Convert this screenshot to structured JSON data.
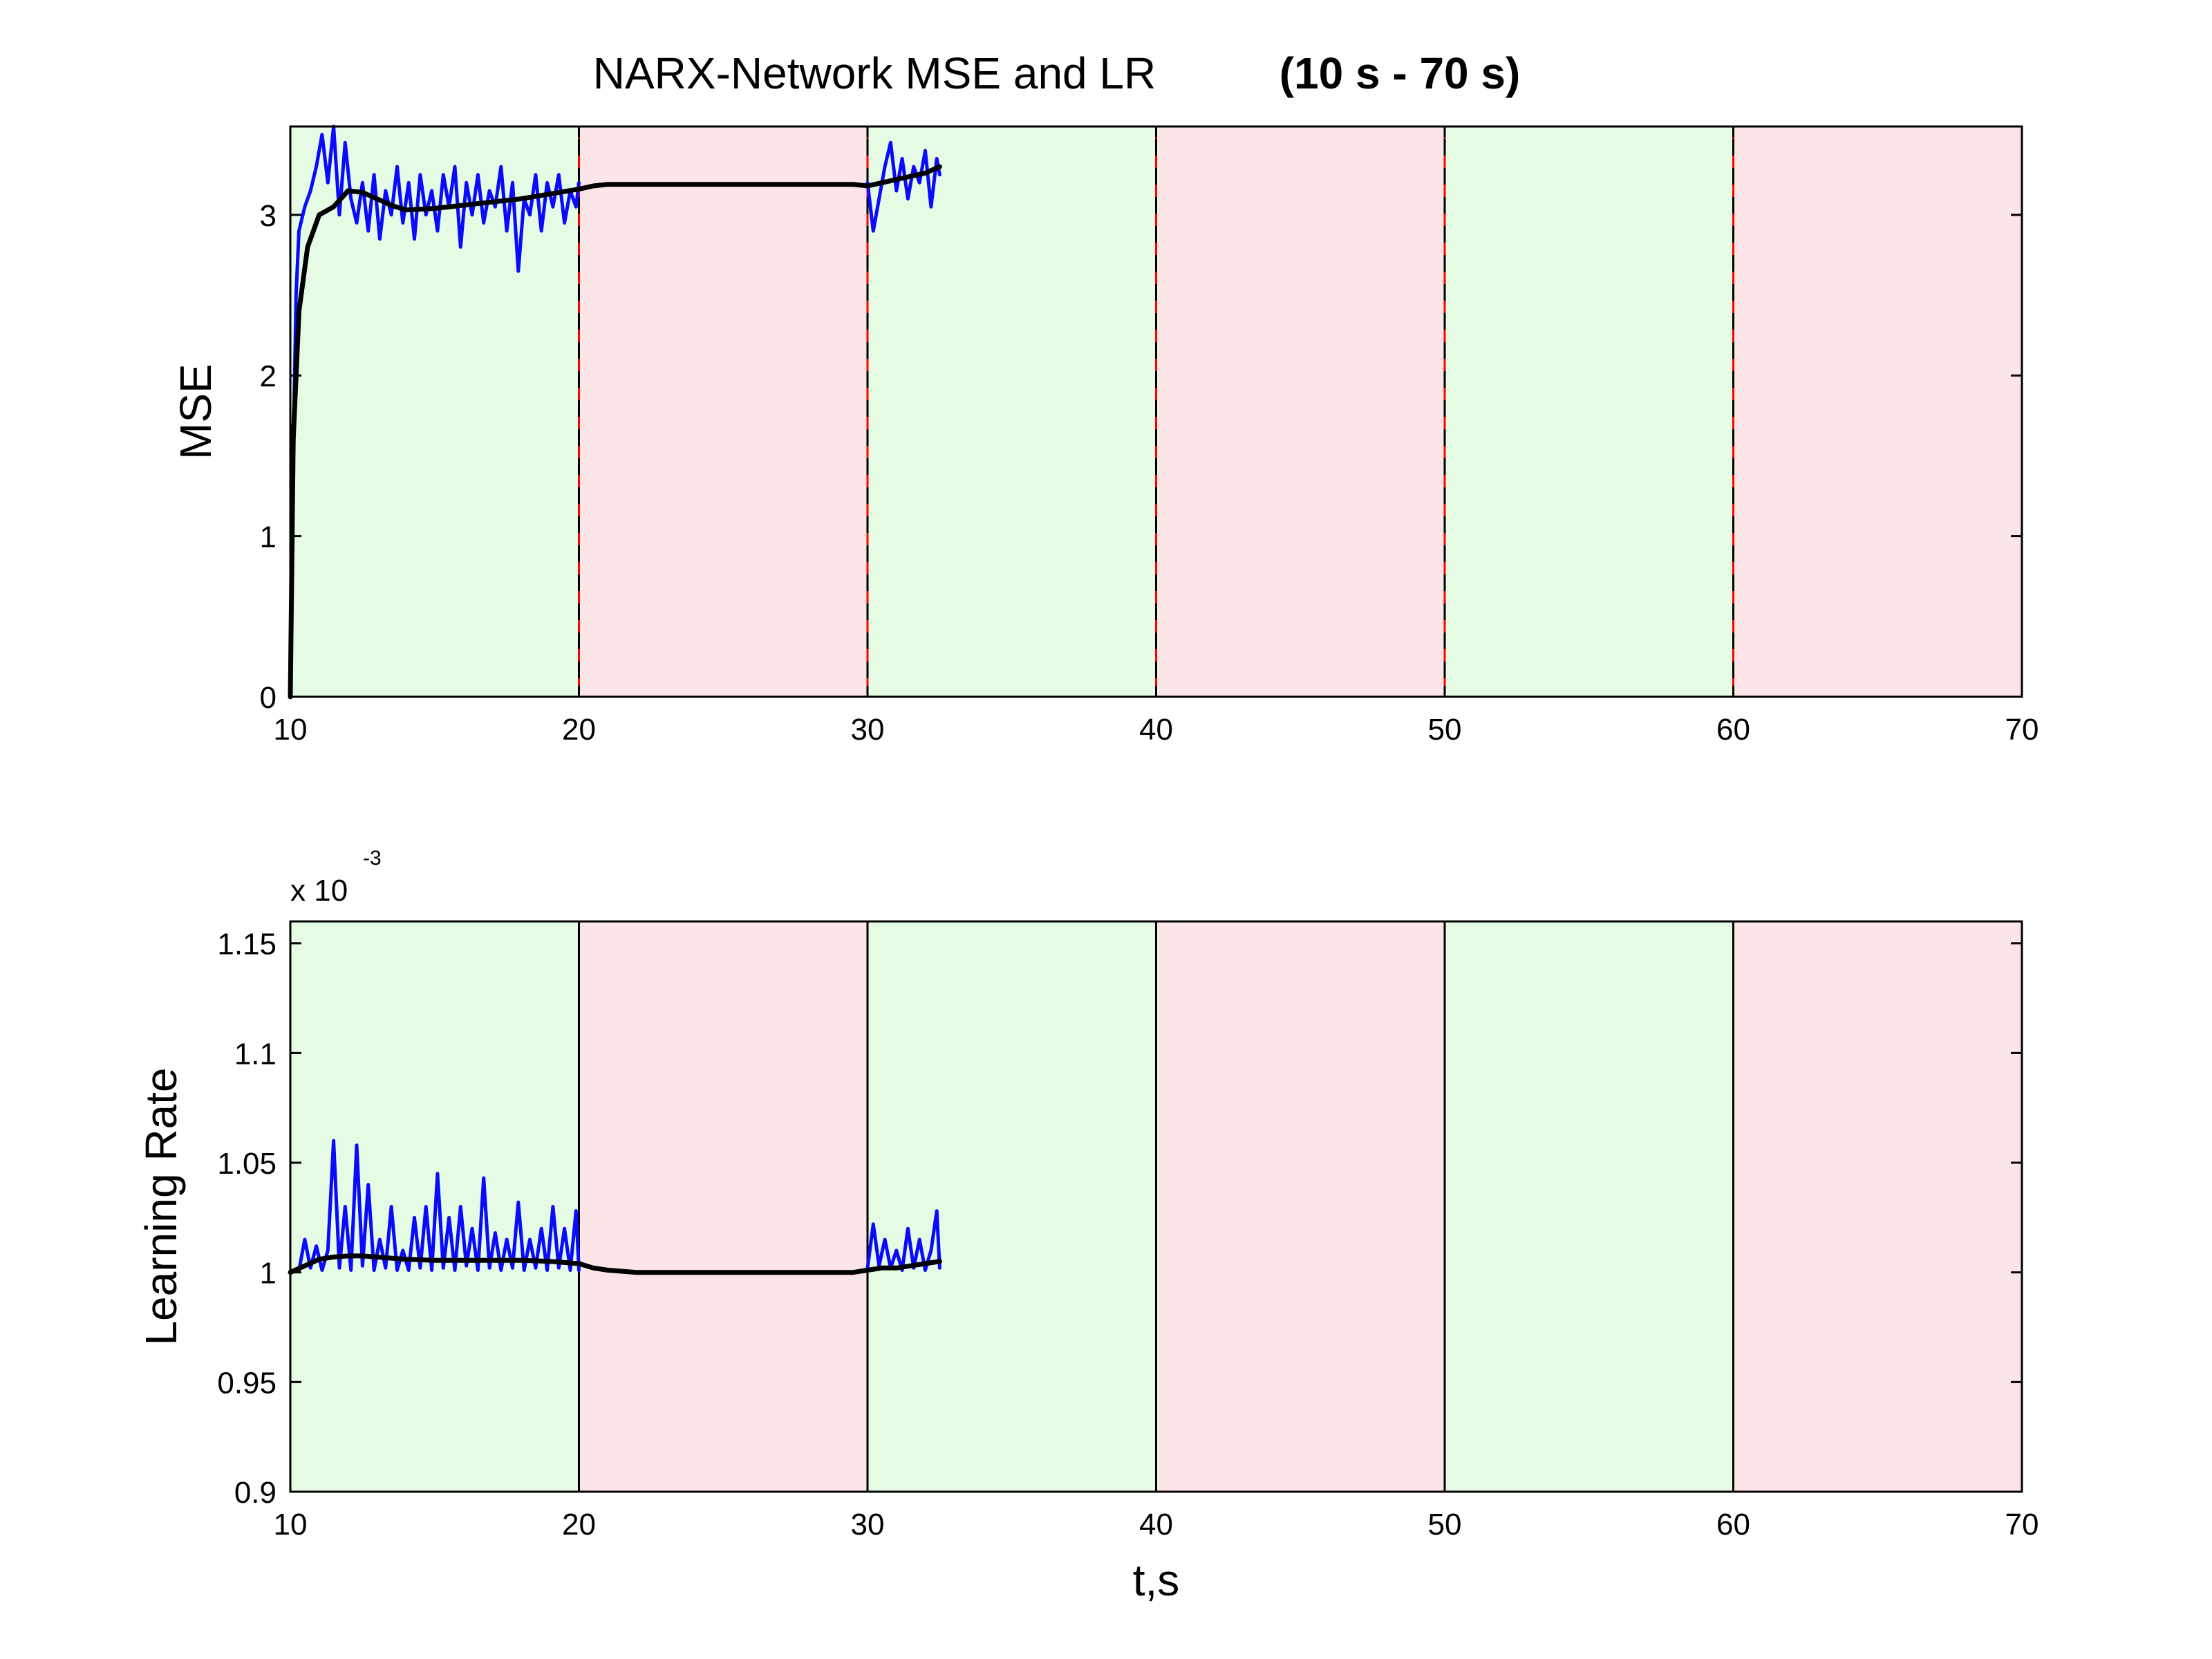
{
  "figure_title": {
    "main": "NARX-Network MSE and LR",
    "bold": "(10 s - 70 s)"
  },
  "colors": {
    "green_band": "#e5fbe3",
    "red_band": "#fce5e6",
    "raw_series": "#0a0aff",
    "smoothed_series": "#000000",
    "phase_divider_top": "#ff0000"
  },
  "chart_data": [
    {
      "type": "line",
      "ylabel": "MSE",
      "xlabel": "",
      "xlim": [
        10,
        70
      ],
      "ylim": [
        0,
        3.55
      ],
      "xticks": [
        "10",
        "20",
        "30",
        "40",
        "50",
        "60",
        "70"
      ],
      "yticks": [
        "0",
        "1",
        "2",
        "3"
      ],
      "bands": [
        {
          "from": 10,
          "to": 20,
          "color": "green"
        },
        {
          "from": 20,
          "to": 30,
          "color": "red"
        },
        {
          "from": 30,
          "to": 40,
          "color": "green"
        },
        {
          "from": 40,
          "to": 50,
          "color": "red"
        },
        {
          "from": 50,
          "to": 60,
          "color": "green"
        },
        {
          "from": 60,
          "to": 70,
          "color": "red"
        }
      ],
      "series": [
        {
          "style": "raw",
          "x": [
            10.0,
            10.1,
            10.2,
            10.3,
            10.5,
            10.7,
            10.9,
            11.1,
            11.3,
            11.5,
            11.7,
            11.9,
            12.1,
            12.3,
            12.5,
            12.7,
            12.9,
            13.1,
            13.3,
            13.5,
            13.7,
            13.9,
            14.1,
            14.3,
            14.5,
            14.7,
            14.9,
            15.1,
            15.3,
            15.5,
            15.7,
            15.9,
            16.1,
            16.3,
            16.5,
            16.7,
            16.9,
            17.1,
            17.3,
            17.5,
            17.7,
            17.9,
            18.1,
            18.3,
            18.5,
            18.7,
            18.9,
            19.1,
            19.3,
            19.5,
            19.7,
            19.9,
            20.0,
            30.0,
            30.2,
            30.4,
            30.6,
            30.8,
            31.0,
            31.2,
            31.4,
            31.6,
            31.8,
            32.0,
            32.2,
            32.4,
            32.5
          ],
          "y": [
            0.0,
            1.5,
            2.5,
            2.9,
            3.05,
            3.15,
            3.3,
            3.5,
            3.2,
            3.55,
            3.0,
            3.45,
            3.1,
            2.95,
            3.2,
            2.9,
            3.25,
            2.85,
            3.15,
            3.0,
            3.3,
            2.95,
            3.2,
            2.85,
            3.25,
            3.0,
            3.15,
            2.9,
            3.25,
            3.05,
            3.3,
            2.8,
            3.2,
            3.0,
            3.25,
            2.95,
            3.15,
            3.05,
            3.3,
            2.9,
            3.2,
            2.65,
            3.1,
            3.0,
            3.25,
            2.9,
            3.2,
            3.05,
            3.25,
            2.95,
            3.15,
            3.05,
            3.2,
            3.2,
            2.9,
            3.1,
            3.3,
            3.45,
            3.15,
            3.35,
            3.1,
            3.3,
            3.2,
            3.4,
            3.05,
            3.35,
            3.25
          ],
          "breaks_after": [
            52
          ]
        },
        {
          "style": "smoothed",
          "x": [
            10.0,
            10.1,
            10.3,
            10.6,
            11.0,
            11.5,
            12.0,
            12.5,
            13.0,
            13.5,
            14.0,
            15.0,
            16.0,
            17.0,
            18.0,
            19.0,
            20.0,
            20.5,
            21.0,
            22.0,
            24.0,
            26.0,
            28.0,
            29.5,
            30.0,
            30.5,
            31.0,
            31.5,
            32.0,
            32.5
          ],
          "y": [
            0.0,
            1.6,
            2.4,
            2.8,
            3.0,
            3.05,
            3.15,
            3.14,
            3.1,
            3.06,
            3.03,
            3.04,
            3.06,
            3.08,
            3.1,
            3.13,
            3.16,
            3.18,
            3.19,
            3.19,
            3.19,
            3.19,
            3.19,
            3.19,
            3.18,
            3.2,
            3.22,
            3.24,
            3.26,
            3.3
          ]
        }
      ]
    },
    {
      "type": "line",
      "ylabel": "Learning Rate",
      "xlabel": "t,s",
      "xlim": [
        10,
        70
      ],
      "ylim": [
        0.9,
        1.16
      ],
      "xticks": [
        "10",
        "20",
        "30",
        "40",
        "50",
        "60",
        "70"
      ],
      "yticks": [
        "0.9",
        "0.95",
        "1",
        "1.05",
        "1.1",
        "1.15"
      ],
      "multiplier_base": "x 10",
      "multiplier_exponent": "-3",
      "bands": [
        {
          "from": 10,
          "to": 20,
          "color": "green"
        },
        {
          "from": 20,
          "to": 30,
          "color": "red"
        },
        {
          "from": 30,
          "to": 40,
          "color": "green"
        },
        {
          "from": 40,
          "to": 50,
          "color": "red"
        },
        {
          "from": 50,
          "to": 60,
          "color": "green"
        },
        {
          "from": 60,
          "to": 70,
          "color": "red"
        }
      ],
      "series": [
        {
          "style": "raw",
          "x": [
            10.0,
            10.3,
            10.5,
            10.7,
            10.9,
            11.1,
            11.3,
            11.5,
            11.7,
            11.9,
            12.1,
            12.3,
            12.5,
            12.7,
            12.9,
            13.1,
            13.3,
            13.5,
            13.7,
            13.9,
            14.1,
            14.3,
            14.5,
            14.7,
            14.9,
            15.1,
            15.3,
            15.5,
            15.7,
            15.9,
            16.1,
            16.3,
            16.5,
            16.7,
            16.9,
            17.1,
            17.3,
            17.5,
            17.7,
            17.9,
            18.1,
            18.3,
            18.5,
            18.7,
            18.9,
            19.1,
            19.3,
            19.5,
            19.7,
            19.9,
            20.0,
            30.0,
            30.2,
            30.4,
            30.6,
            30.8,
            31.0,
            31.2,
            31.4,
            31.6,
            31.8,
            32.0,
            32.2,
            32.4,
            32.5
          ],
          "y": [
            1.0,
            1.001,
            1.015,
            1.002,
            1.012,
            1.001,
            1.01,
            1.06,
            1.002,
            1.03,
            1.001,
            1.058,
            1.003,
            1.04,
            1.001,
            1.015,
            1.002,
            1.03,
            1.001,
            1.01,
            1.001,
            1.025,
            1.002,
            1.03,
            1.001,
            1.045,
            1.002,
            1.025,
            1.001,
            1.03,
            1.003,
            1.02,
            1.001,
            1.043,
            1.002,
            1.018,
            1.001,
            1.015,
            1.002,
            1.032,
            1.001,
            1.015,
            1.002,
            1.02,
            1.001,
            1.03,
            1.002,
            1.02,
            1.001,
            1.028,
            1.001,
            1.002,
            1.022,
            1.003,
            1.015,
            1.002,
            1.01,
            1.001,
            1.02,
            1.002,
            1.015,
            1.001,
            1.01,
            1.028,
            1.002
          ],
          "breaks_after": [
            50
          ]
        },
        {
          "style": "smoothed",
          "x": [
            10.0,
            10.5,
            11.0,
            11.5,
            12.0,
            12.5,
            13.0,
            14.0,
            15.0,
            16.0,
            17.0,
            18.0,
            19.0,
            20.0,
            20.5,
            21.0,
            22.0,
            24.0,
            26.0,
            28.0,
            29.5,
            30.0,
            30.5,
            31.0,
            31.5,
            32.0,
            32.5
          ],
          "y": [
            1.0,
            1.003,
            1.006,
            1.007,
            1.0075,
            1.0075,
            1.007,
            1.006,
            1.0055,
            1.0055,
            1.0055,
            1.0055,
            1.005,
            1.004,
            1.002,
            1.001,
            1.0,
            1.0,
            1.0,
            1.0,
            1.0,
            1.001,
            1.002,
            1.002,
            1.003,
            1.004,
            1.005
          ]
        }
      ]
    }
  ]
}
